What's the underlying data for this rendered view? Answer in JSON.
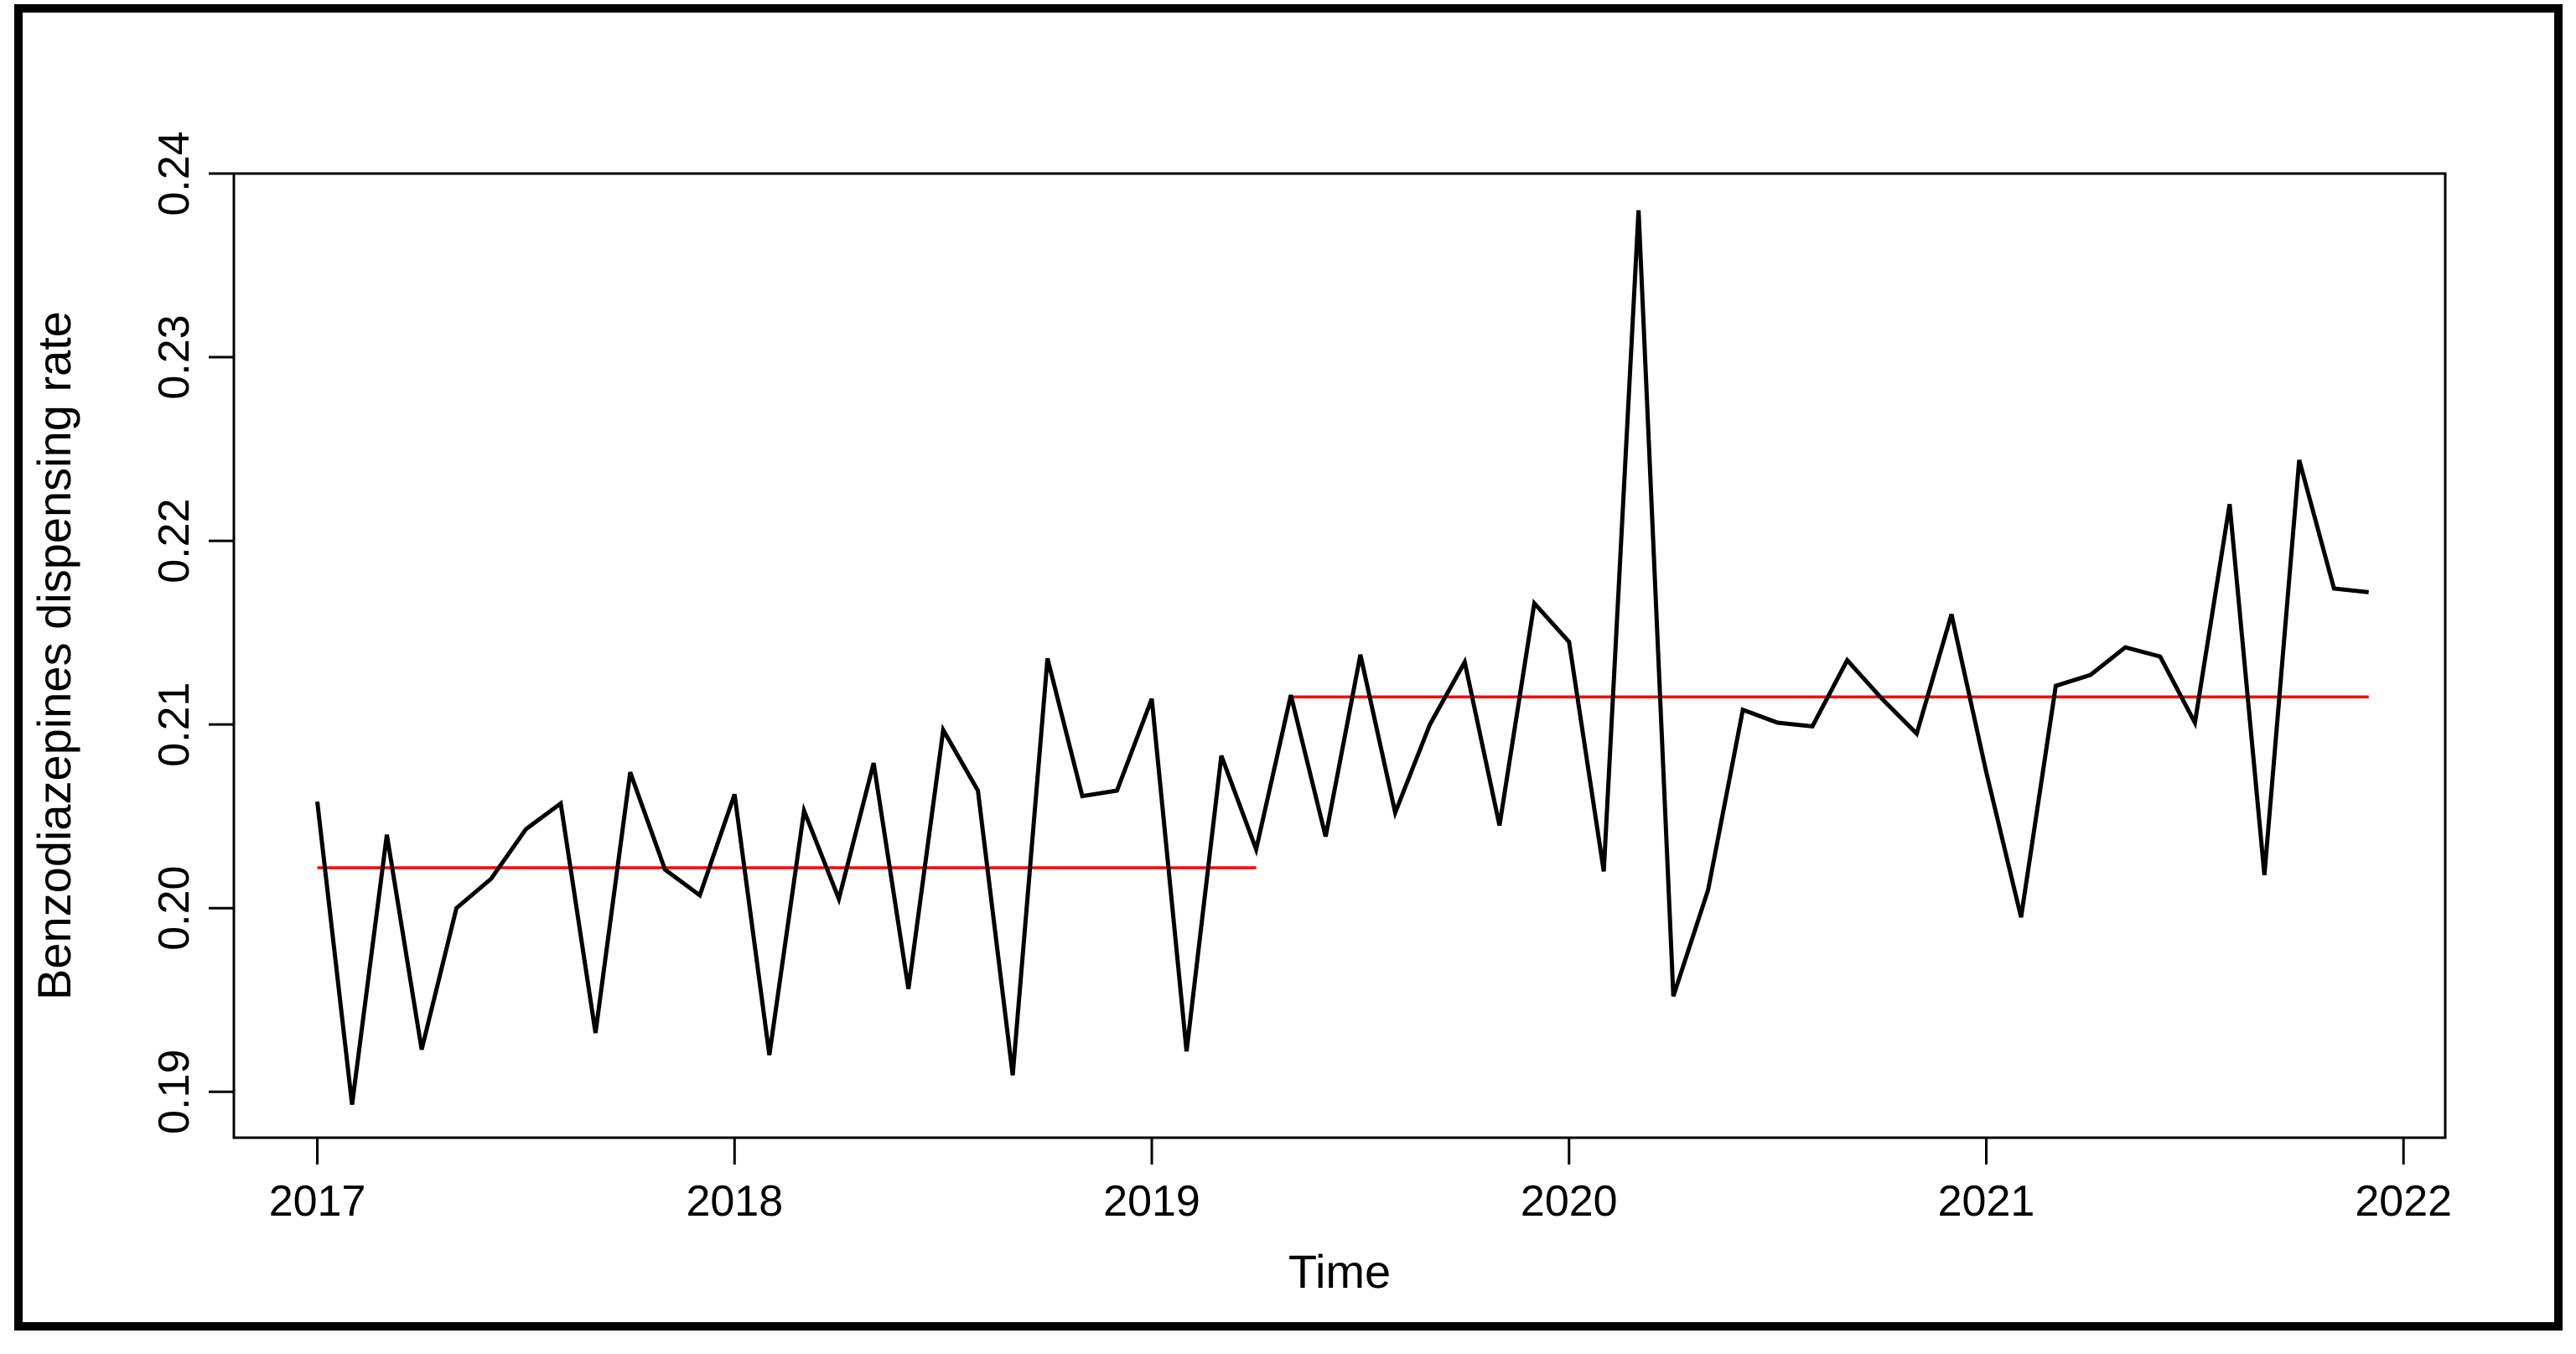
{
  "figure": {
    "background": "#ffffff",
    "border_color": "#000000",
    "axis_color": "#000000"
  },
  "chart_data": {
    "type": "line",
    "title": "",
    "xlabel": "Time",
    "ylabel": "Benzodiazepines dispensing rate",
    "legend": "none",
    "grid": false,
    "x_axis": {
      "lim": [
        2016.8,
        2022.1
      ],
      "ticks": [
        2017,
        2018,
        2019,
        2020,
        2021,
        2022
      ],
      "tick_labels": [
        "2017",
        "2018",
        "2019",
        "2020",
        "2021",
        "2022"
      ]
    },
    "y_axis": {
      "lim": [
        0.1875,
        0.24
      ],
      "ticks": [
        0.19,
        0.2,
        0.21,
        0.22,
        0.23,
        0.24
      ],
      "tick_labels": [
        "0.19",
        "0.20",
        "0.21",
        "0.22",
        "0.23",
        "0.24"
      ]
    },
    "series": [
      {
        "name": "Benzodiazepines dispensing rate",
        "color": "#000000",
        "start_year": 2017,
        "frequency": "monthly",
        "values": [
          0.2058,
          0.1893,
          0.204,
          0.1923,
          0.2,
          0.2016,
          0.2043,
          0.2057,
          0.1932,
          0.2074,
          0.2021,
          0.2007,
          0.2062,
          0.192,
          0.2053,
          0.2005,
          0.2079,
          0.1956,
          0.2097,
          0.2064,
          0.1909,
          0.2136,
          0.2061,
          0.2064,
          0.2114,
          0.1922,
          0.2083,
          0.2032,
          0.2116,
          0.2039,
          0.2138,
          0.2052,
          0.21,
          0.2134,
          0.2045,
          0.2166,
          0.2145,
          0.202,
          0.238,
          0.1952,
          0.201,
          0.2108,
          0.2101,
          0.2099,
          0.2135,
          0.2114,
          0.2095,
          0.216,
          0.2074,
          0.1995,
          0.2121,
          0.2127,
          0.2142,
          0.2137,
          0.2101,
          0.222,
          0.2018,
          0.2244,
          0.2174,
          0.2172
        ]
      }
    ],
    "mean_segments": [
      {
        "name": "pre-changepoint mean",
        "from": 2017.0,
        "to": 2019.25,
        "value": 0.2022,
        "color": "#ff0000"
      },
      {
        "name": "post-changepoint mean",
        "from": 2019.3333,
        "to": 2021.9167,
        "value": 0.2115,
        "color": "#ff0000"
      }
    ]
  }
}
